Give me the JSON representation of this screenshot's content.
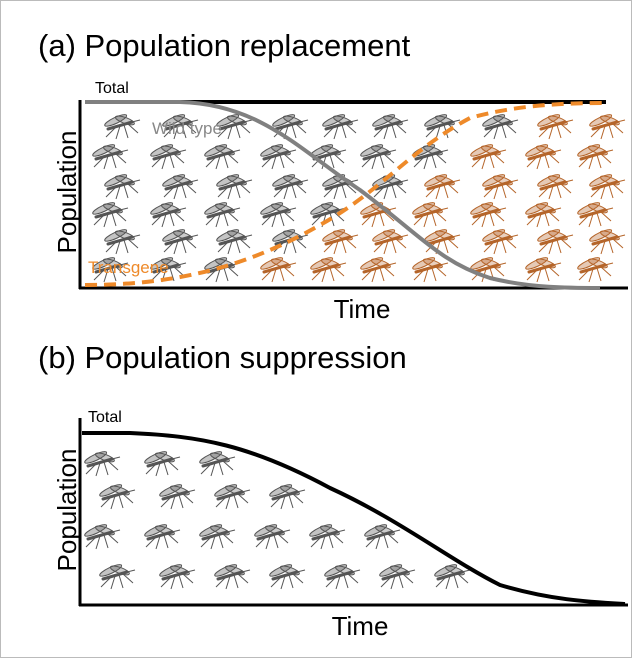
{
  "panels": [
    {
      "title": "(a) Population replacement",
      "total_label": "Total",
      "wild_type_label": "Wild type",
      "transgene_label": "Transgene",
      "y_label": "Population",
      "x_label": "Time"
    },
    {
      "title": "(b) Population suppression",
      "total_label": "Total",
      "y_label": "Population",
      "x_label": "Time"
    }
  ]
}
